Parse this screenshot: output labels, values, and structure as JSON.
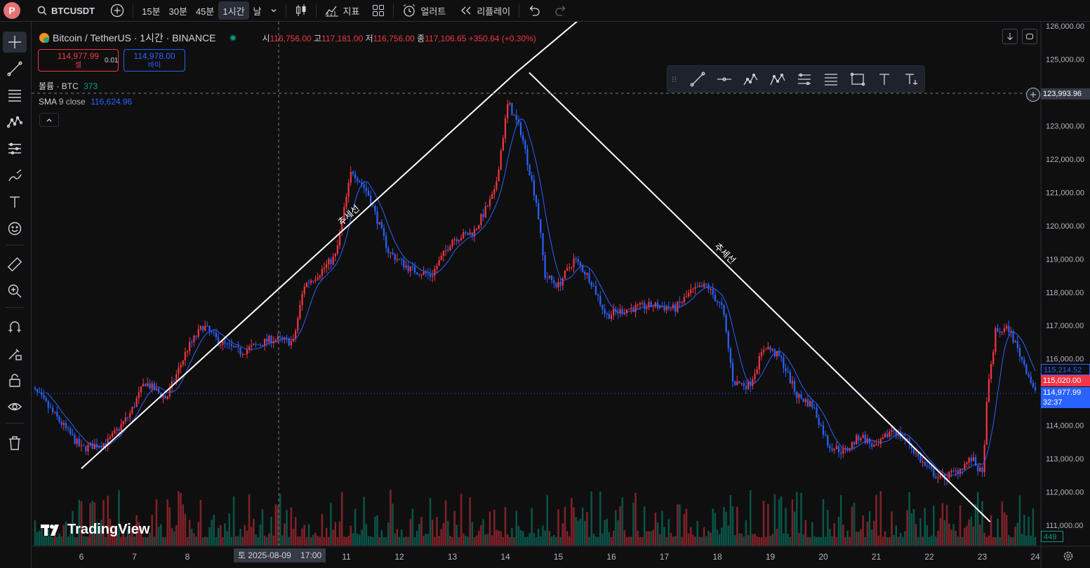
{
  "toolbar": {
    "avatar_letter": "P",
    "symbol": "BTCUSDT",
    "intervals": [
      "15분",
      "30분",
      "45분",
      "1시간",
      "날"
    ],
    "active_interval": "1시간",
    "indicators_label": "지표",
    "alert_label": "얼러트",
    "replay_label": "리플레이"
  },
  "legend": {
    "title": "Bitcoin / TetherUS · 1시간 · BINANCE",
    "open_label": "시",
    "open": "116,756.00",
    "high_label": "고",
    "high": "117,181.00",
    "low_label": "저",
    "low": "116,756.00",
    "close_label": "종",
    "close": "117,106.65",
    "change": "+350.64 (+0.30%)"
  },
  "trade": {
    "sell_price": "114,977.99",
    "sell_label": "셀",
    "spread": "0.01",
    "buy_price": "114,978.00",
    "buy_label": "바이"
  },
  "indicators": {
    "volume_name": "볼륨",
    "volume_sub": "· BTC",
    "volume_value": "373",
    "sma_name": "SMA",
    "sma_params": "9 close",
    "sma_value": "116,624.96"
  },
  "crosshair": {
    "price": "123,993.96",
    "time": "토 2025-08-09",
    "time_hour": "17:00"
  },
  "price_labels": {
    "sma": "115,214.52",
    "bid": "115,020.00",
    "last": "114,977.99",
    "countdown": "32:37",
    "volume": "449"
  },
  "watermark": "TradingView",
  "trendline_label_1": "추세선",
  "trendline_label_2": "추세선",
  "colors": {
    "up": "#f23645",
    "down": "#2962ff",
    "sma": "#2962ff",
    "trendline": "#ffffff",
    "background": "#0f0f0f"
  },
  "chart_data": {
    "type": "candlestick",
    "symbol": "BTCUSDT",
    "interval": "1h",
    "ylim": [
      110700,
      126000
    ],
    "y_ticks": [
      111000,
      112000,
      113000,
      114000,
      115000,
      116000,
      117000,
      118000,
      119000,
      120000,
      121000,
      122000,
      123000,
      124000,
      125000,
      126000
    ],
    "y_tick_labels": [
      "111,000.00",
      "112,000.00",
      "113,000.00",
      "114,000.00",
      "115,000.00",
      "116,000.00",
      "117,000.00",
      "118,000.00",
      "119,000.00",
      "120,000.00",
      "121,000.00",
      "122,000.00",
      "123,000.00",
      "124,000.00",
      "125,000.00",
      "126,000.00"
    ],
    "x_ticks": [
      "6",
      "7",
      "8",
      "9",
      "10",
      "11",
      "12",
      "13",
      "14",
      "15",
      "16",
      "17",
      "18",
      "19",
      "20",
      "21",
      "22",
      "23",
      "24"
    ],
    "price_path_keypoints": [
      {
        "day": 5.0,
        "price": 115200
      },
      {
        "day": 5.2,
        "price": 114900
      },
      {
        "day": 5.5,
        "price": 114300
      },
      {
        "day": 6.0,
        "price": 113300
      },
      {
        "day": 6.5,
        "price": 113500
      },
      {
        "day": 6.9,
        "price": 114300
      },
      {
        "day": 7.2,
        "price": 115300
      },
      {
        "day": 7.6,
        "price": 114800
      },
      {
        "day": 8.0,
        "price": 116300
      },
      {
        "day": 8.3,
        "price": 117000
      },
      {
        "day": 8.6,
        "price": 116500
      },
      {
        "day": 9.0,
        "price": 116200
      },
      {
        "day": 9.6,
        "price": 116600
      },
      {
        "day": 10.0,
        "price": 116500
      },
      {
        "day": 10.2,
        "price": 118200
      },
      {
        "day": 10.5,
        "price": 118600
      },
      {
        "day": 10.8,
        "price": 119100
      },
      {
        "day": 11.1,
        "price": 121700
      },
      {
        "day": 11.4,
        "price": 121000
      },
      {
        "day": 11.8,
        "price": 119200
      },
      {
        "day": 12.2,
        "price": 118700
      },
      {
        "day": 12.6,
        "price": 118500
      },
      {
        "day": 13.0,
        "price": 119600
      },
      {
        "day": 13.4,
        "price": 119800
      },
      {
        "day": 13.8,
        "price": 121000
      },
      {
        "day": 14.05,
        "price": 123700
      },
      {
        "day": 14.3,
        "price": 122800
      },
      {
        "day": 14.6,
        "price": 120600
      },
      {
        "day": 14.75,
        "price": 118500
      },
      {
        "day": 15.0,
        "price": 118200
      },
      {
        "day": 15.3,
        "price": 119000
      },
      {
        "day": 15.6,
        "price": 118400
      },
      {
        "day": 15.9,
        "price": 117300
      },
      {
        "day": 16.3,
        "price": 117500
      },
      {
        "day": 16.8,
        "price": 117600
      },
      {
        "day": 17.2,
        "price": 117500
      },
      {
        "day": 17.5,
        "price": 118000
      },
      {
        "day": 17.8,
        "price": 118200
      },
      {
        "day": 18.1,
        "price": 117500
      },
      {
        "day": 18.3,
        "price": 115300
      },
      {
        "day": 18.6,
        "price": 115200
      },
      {
        "day": 18.9,
        "price": 116400
      },
      {
        "day": 19.2,
        "price": 116000
      },
      {
        "day": 19.5,
        "price": 114900
      },
      {
        "day": 19.8,
        "price": 114600
      },
      {
        "day": 20.1,
        "price": 113400
      },
      {
        "day": 20.4,
        "price": 113200
      },
      {
        "day": 20.7,
        "price": 113700
      },
      {
        "day": 21.0,
        "price": 113300
      },
      {
        "day": 21.3,
        "price": 113900
      },
      {
        "day": 21.6,
        "price": 113500
      },
      {
        "day": 21.9,
        "price": 112800
      },
      {
        "day": 22.2,
        "price": 112400
      },
      {
        "day": 22.5,
        "price": 112600
      },
      {
        "day": 22.8,
        "price": 113000
      },
      {
        "day": 23.0,
        "price": 112500
      },
      {
        "day": 23.1,
        "price": 115000
      },
      {
        "day": 23.25,
        "price": 116800
      },
      {
        "day": 23.5,
        "price": 116900
      },
      {
        "day": 23.8,
        "price": 115800
      },
      {
        "day": 24.0,
        "price": 115000
      }
    ],
    "trendlines": [
      {
        "label": "추세선",
        "from": {
          "day": 6.0,
          "price": 112700
        },
        "to": {
          "day": 14.2,
          "price": 124600
        },
        "note": "rising support"
      },
      {
        "label": "추세선",
        "from": {
          "day": 14.45,
          "price": 124600
        },
        "to": {
          "day": 23.15,
          "price": 111100
        },
        "note": "falling resistance"
      }
    ],
    "grid": false,
    "legend": "top-left"
  }
}
